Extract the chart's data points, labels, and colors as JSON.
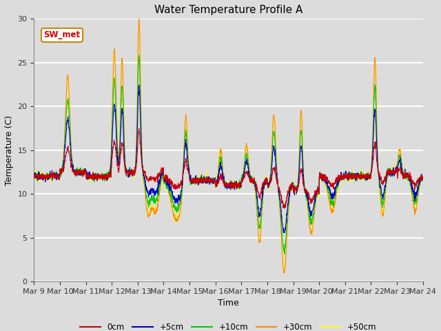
{
  "title": "Water Temperature Profile A",
  "xlabel": "Time",
  "ylabel": "Temperature (C)",
  "ylim": [
    0,
    30
  ],
  "yticks": [
    0,
    5,
    10,
    15,
    20,
    25,
    30
  ],
  "n_days": 15,
  "start_day": 9,
  "background_color": "#dcdcdc",
  "plot_bg_color": "#dcdcdc",
  "grid_color": "#ffffff",
  "lines": [
    {
      "label": "0cm",
      "color": "#cc0000"
    },
    {
      "label": "+5cm",
      "color": "#0000cc"
    },
    {
      "label": "+10cm",
      "color": "#00cc00"
    },
    {
      "label": "+30cm",
      "color": "#ff8800"
    },
    {
      "label": "+50cm",
      "color": "#ffff00"
    }
  ],
  "annotation": "SW_met",
  "annotation_color": "#cc0000",
  "annotation_bg": "#ffffff",
  "annotation_border": "#cc8800"
}
